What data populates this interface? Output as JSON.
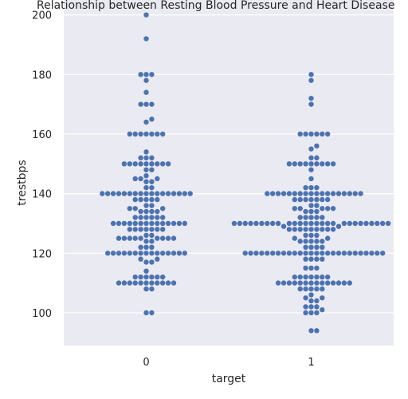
{
  "chart_data": {
    "type": "swarm",
    "title": "Relationship between Resting Blood Pressure and Heart Disease",
    "xlabel": "target",
    "ylabel": "trestbps",
    "categories": [
      "0",
      "1"
    ],
    "ylim": [
      89,
      205
    ],
    "yticks": [
      100,
      120,
      140,
      160,
      180,
      200
    ],
    "grid": true,
    "colors": {
      "background": "#eaeaf2",
      "grid": "#ffffff",
      "point": "#4c72b0",
      "text": "#262626"
    },
    "series": [
      {
        "category": "0",
        "counts": [
          [
            100,
            2
          ],
          [
            108,
            2
          ],
          [
            110,
            11
          ],
          [
            112,
            6
          ],
          [
            114,
            1
          ],
          [
            117,
            2
          ],
          [
            118,
            2
          ],
          [
            120,
            15
          ],
          [
            122,
            3
          ],
          [
            124,
            2
          ],
          [
            125,
            9
          ],
          [
            126,
            2
          ],
          [
            128,
            7
          ],
          [
            130,
            14
          ],
          [
            132,
            6
          ],
          [
            134,
            4
          ],
          [
            135,
            3
          ],
          [
            136,
            2
          ],
          [
            138,
            5
          ],
          [
            140,
            17
          ],
          [
            142,
            2
          ],
          [
            144,
            2
          ],
          [
            145,
            3
          ],
          [
            146,
            1
          ],
          [
            148,
            2
          ],
          [
            150,
            9
          ],
          [
            152,
            3
          ],
          [
            154,
            1
          ],
          [
            160,
            7
          ],
          [
            164,
            1
          ],
          [
            165,
            1
          ],
          [
            170,
            3
          ],
          [
            174,
            1
          ],
          [
            178,
            1
          ],
          [
            180,
            3
          ],
          [
            192,
            1
          ],
          [
            200,
            1
          ]
        ]
      },
      {
        "category": "1",
        "counts": [
          [
            94,
            2
          ],
          [
            100,
            3
          ],
          [
            101,
            1
          ],
          [
            102,
            3
          ],
          [
            104,
            2
          ],
          [
            105,
            2
          ],
          [
            106,
            1
          ],
          [
            108,
            5
          ],
          [
            110,
            14
          ],
          [
            112,
            7
          ],
          [
            115,
            3
          ],
          [
            118,
            4
          ],
          [
            120,
            26
          ],
          [
            122,
            4
          ],
          [
            124,
            5
          ],
          [
            125,
            2
          ],
          [
            126,
            3
          ],
          [
            128,
            9
          ],
          [
            129,
            2
          ],
          [
            130,
            27
          ],
          [
            132,
            5
          ],
          [
            134,
            3
          ],
          [
            135,
            5
          ],
          [
            136,
            2
          ],
          [
            138,
            7
          ],
          [
            140,
            18
          ],
          [
            142,
            3
          ],
          [
            145,
            1
          ],
          [
            148,
            1
          ],
          [
            150,
            9
          ],
          [
            152,
            2
          ],
          [
            155,
            1
          ],
          [
            156,
            1
          ],
          [
            160,
            6
          ],
          [
            170,
            1
          ],
          [
            172,
            1
          ],
          [
            178,
            1
          ],
          [
            180,
            1
          ]
        ]
      }
    ]
  }
}
